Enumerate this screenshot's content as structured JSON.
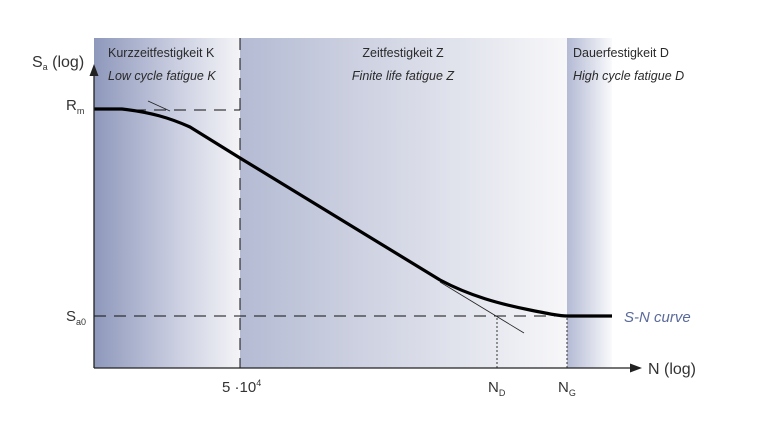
{
  "axes": {
    "y_label_main": "S",
    "y_label_sub": "a",
    "y_label_suffix": " (log)",
    "x_label": "N (log)"
  },
  "y_ticks": {
    "rm_main": "R",
    "rm_sub": "m",
    "sa0_main": "S",
    "sa0_sub": "a0"
  },
  "x_ticks": {
    "n1": "5 ·10",
    "n1_exp": "4",
    "nd_main": "N",
    "nd_sub": "D",
    "ng_main": "N",
    "ng_sub": "G"
  },
  "zones": [
    {
      "de": "Kurzzeitfestigkeit K",
      "en": "Low cycle fatigue K",
      "color": "#8a94b8"
    },
    {
      "de": "Zeitfestigkeit Z",
      "en": "Finite life fatigue Z",
      "color": "#c4c9dd"
    },
    {
      "de": "Dauerfestigkeit D",
      "en": "High cycle fatigue D",
      "color": "#bcc3da"
    }
  ],
  "curve_label": "S-N curve",
  "colors": {
    "curve": "#000000",
    "curve_label": "#5a6a9a",
    "axis": "#222222"
  }
}
